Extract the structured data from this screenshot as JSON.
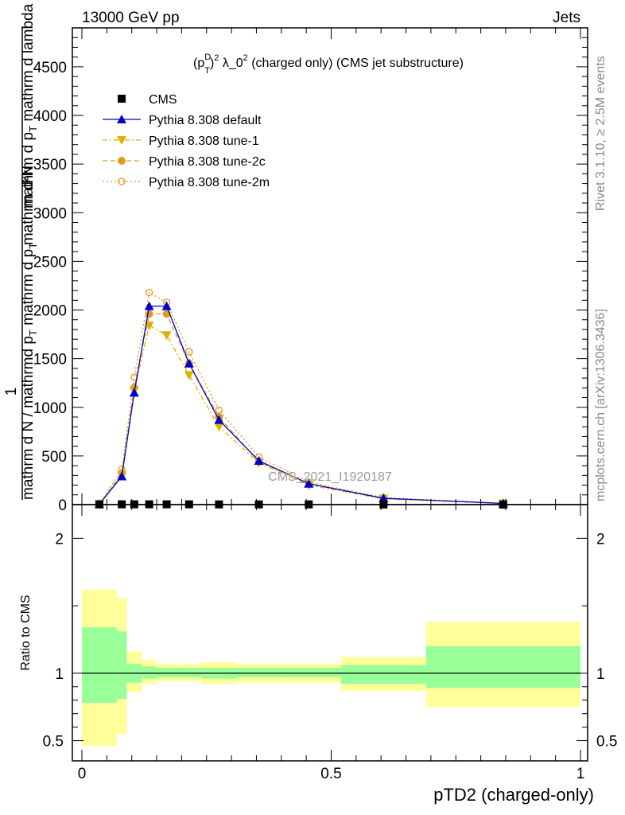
{
  "header": {
    "left": "13000 GeV pp",
    "right": "Jets"
  },
  "side_text": {
    "rivet": "Rivet 3.1.10, ≥ 2.5M events",
    "mcplots": "mcplots.cern.ch [arXiv:1306.3436]"
  },
  "chart_data": [
    {
      "type": "line",
      "title": "(p_T^D)^2 λ_0^2 (charged only) (CMS jet substructure)",
      "title_parts": {
        "a": "(p",
        "sup1": "D",
        "sub1": "T",
        "b": ")",
        "sup2": "2",
        "c": " λ_0",
        "sup3": "2",
        "d": " (charged only) (CMS jet substructure)"
      },
      "ylabel": "1 / mathrm d N / mathrm d p_T mathrm d lambda ; mathrm d²N / mathrm d p_T mathrm d lambda",
      "ylabel_parts": {
        "num": "1",
        "den": "mathrm d N / mathrmd p",
        "den_sub": "T",
        "den2": " mathrm d p",
        "den2_sub": "T",
        "top_num": "mathrm d²N",
        "top_den": "mathrm d p",
        "top_den_sub": "T",
        "top_den2": " mathrm d lambda"
      },
      "watermark": "CMS_2021_I1920187",
      "xlim": [
        0,
        1
      ],
      "ylim": [
        0,
        4900
      ],
      "yticks": [
        0,
        500,
        1000,
        1500,
        2000,
        2500,
        3000,
        3500,
        4000,
        4500
      ],
      "ytick_labels": [
        "0",
        "500",
        "1000",
        "1500",
        "2000",
        "2500",
        "3000",
        "3500",
        "4000",
        "4500"
      ],
      "legend_position": "top-left",
      "series": [
        {
          "name": "CMS",
          "color": "#000000",
          "marker": "square",
          "x": [
            0.035,
            0.08,
            0.105,
            0.135,
            0.17,
            0.215,
            0.275,
            0.355,
            0.455,
            0.605,
            0.845
          ],
          "y": [
            2,
            3,
            3,
            3,
            3,
            3,
            2,
            2,
            2,
            1,
            0
          ]
        },
        {
          "name": "Pythia 8.308 default",
          "color": "#0000cc",
          "marker": "triangle-up",
          "dash": "",
          "x": [
            0.035,
            0.08,
            0.105,
            0.135,
            0.17,
            0.215,
            0.275,
            0.355,
            0.455,
            0.605,
            0.845
          ],
          "y": [
            5,
            290,
            1150,
            2040,
            2040,
            1450,
            870,
            450,
            215,
            65,
            12
          ]
        },
        {
          "name": "Pythia 8.308 tune-1",
          "color": "#e0b000",
          "marker": "triangle-down",
          "dash": "6,3,2,3",
          "x": [
            0.035,
            0.08,
            0.105,
            0.135,
            0.17,
            0.215,
            0.275,
            0.355,
            0.455,
            0.605,
            0.845
          ],
          "y": [
            5,
            300,
            1170,
            1840,
            1740,
            1330,
            800,
            430,
            200,
            60,
            11
          ]
        },
        {
          "name": "Pythia 8.308 tune-2c",
          "color": "#e09a20",
          "marker": "circle",
          "dash": "6,4",
          "x": [
            0.035,
            0.08,
            0.105,
            0.135,
            0.17,
            0.215,
            0.275,
            0.355,
            0.455,
            0.605,
            0.845
          ],
          "y": [
            5,
            320,
            1200,
            1960,
            1960,
            1450,
            900,
            440,
            215,
            65,
            12
          ]
        },
        {
          "name": "Pythia 8.308 tune-2m",
          "color": "#e09a20",
          "marker": "circle-open",
          "dash": "2,3",
          "x": [
            0.035,
            0.08,
            0.105,
            0.135,
            0.17,
            0.215,
            0.275,
            0.355,
            0.455,
            0.605,
            0.845
          ],
          "y": [
            5,
            360,
            1310,
            2180,
            2080,
            1570,
            970,
            490,
            230,
            72,
            13
          ]
        }
      ]
    },
    {
      "type": "area",
      "ylabel": "Ratio to CMS",
      "xlabel": "pTD2 (charged-only)",
      "xlim": [
        0,
        1
      ],
      "ylim": [
        0.35,
        2.25
      ],
      "xticks": [
        0,
        0.5,
        1
      ],
      "xtick_labels": [
        "0",
        "0.5",
        "1"
      ],
      "yticks": [
        0.5,
        1,
        2
      ],
      "ytick_labels": [
        "0.5",
        "1",
        "2"
      ],
      "bands": {
        "edges": [
          0,
          0.07,
          0.09,
          0.12,
          0.15,
          0.19,
          0.24,
          0.31,
          0.4,
          0.52,
          0.69,
          1.0
        ],
        "yellow_lo": [
          0.46,
          0.55,
          0.86,
          0.92,
          0.94,
          0.94,
          0.92,
          0.93,
          0.93,
          0.87,
          0.75
        ],
        "yellow_hi": [
          1.62,
          1.56,
          1.16,
          1.1,
          1.07,
          1.07,
          1.08,
          1.07,
          1.07,
          1.12,
          1.38
        ],
        "green_lo": [
          0.78,
          0.81,
          0.93,
          0.96,
          0.97,
          0.97,
          0.96,
          0.97,
          0.97,
          0.92,
          0.89
        ],
        "green_hi": [
          1.34,
          1.31,
          1.07,
          1.05,
          1.04,
          1.04,
          1.04,
          1.04,
          1.04,
          1.06,
          1.2
        ]
      },
      "reference": 1,
      "colors": {
        "yellow": "#ffff99",
        "green": "#99ff99"
      }
    }
  ]
}
